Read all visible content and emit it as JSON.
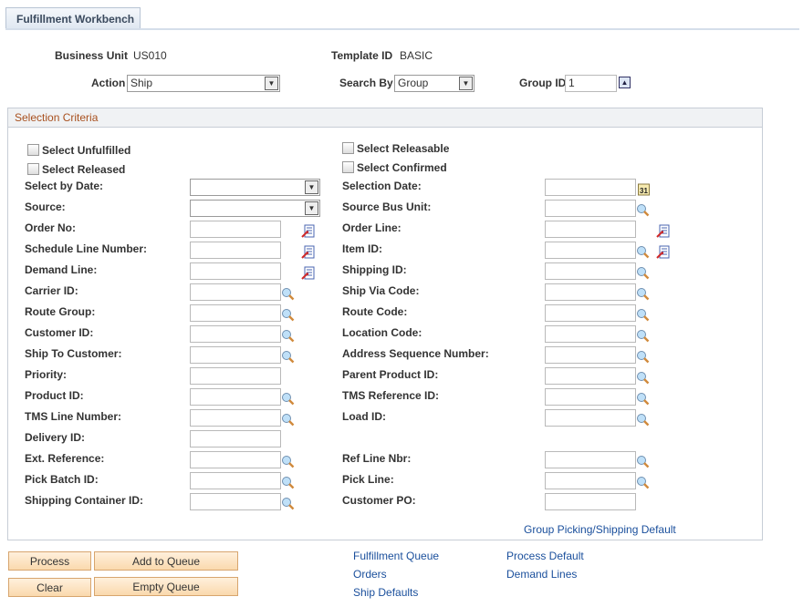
{
  "tab": {
    "label": "Fulfillment Workbench"
  },
  "header": {
    "business_unit_label": "Business Unit",
    "business_unit": "US010",
    "template_id_label": "Template ID",
    "template_id": "BASIC",
    "action_label": "Action",
    "action_value": "Ship",
    "search_by_label": "Search By",
    "search_by_value": "Group",
    "group_id_label": "Group ID",
    "group_id_value": "1"
  },
  "section": {
    "title": "Selection Criteria",
    "checkboxes": [
      {
        "label": "Select Unfulfilled",
        "checked": false
      },
      {
        "label": "Select Released",
        "checked": false
      },
      {
        "label": "Select Releasable",
        "checked": false
      },
      {
        "label": "Select Confirmed",
        "checked": false
      }
    ],
    "left_fields": [
      {
        "label": "Select by Date:",
        "type": "select",
        "icons": []
      },
      {
        "label": "Source:",
        "type": "select",
        "icons": []
      },
      {
        "label": "Order No:",
        "type": "input",
        "icons": [
          "detail"
        ]
      },
      {
        "label": "Schedule Line Number:",
        "type": "input",
        "icons": [
          "detail"
        ]
      },
      {
        "label": "Demand Line:",
        "type": "input",
        "icons": [
          "detail"
        ]
      },
      {
        "label": "Carrier ID:",
        "type": "input",
        "icons": [
          "lookup"
        ]
      },
      {
        "label": "Route Group:",
        "type": "input",
        "icons": [
          "lookup"
        ]
      },
      {
        "label": "Customer ID:",
        "type": "input",
        "icons": [
          "lookup"
        ]
      },
      {
        "label": "Ship To Customer:",
        "type": "input",
        "icons": [
          "lookup"
        ]
      },
      {
        "label": "Priority:",
        "type": "input",
        "icons": []
      },
      {
        "label": "Product ID:",
        "type": "input",
        "icons": [
          "lookup"
        ]
      },
      {
        "label": "TMS Line Number:",
        "type": "input",
        "icons": [
          "lookup"
        ]
      },
      {
        "label": "Delivery ID:",
        "type": "input",
        "icons": []
      },
      {
        "label": "Ext. Reference:",
        "type": "input",
        "icons": [
          "lookup"
        ]
      },
      {
        "label": "Pick Batch ID:",
        "type": "input",
        "icons": [
          "lookup"
        ]
      },
      {
        "label": "Shipping Container ID:",
        "type": "input",
        "icons": [
          "lookup"
        ]
      }
    ],
    "right_fields": [
      {
        "label": "Selection Date:",
        "type": "input",
        "icons": [
          "calendar"
        ]
      },
      {
        "label": "Source Bus Unit:",
        "type": "input",
        "icons": [
          "lookup"
        ]
      },
      {
        "label": "Order Line:",
        "type": "input",
        "icons": [
          "detail"
        ]
      },
      {
        "label": "Item ID:",
        "type": "input",
        "icons": [
          "lookup",
          "detail"
        ]
      },
      {
        "label": "Shipping ID:",
        "type": "input",
        "icons": [
          "lookup"
        ]
      },
      {
        "label": "Ship Via Code:",
        "type": "input",
        "icons": [
          "lookup"
        ]
      },
      {
        "label": "Route Code:",
        "type": "input",
        "icons": [
          "lookup"
        ]
      },
      {
        "label": "Location Code:",
        "type": "input",
        "icons": [
          "lookup"
        ]
      },
      {
        "label": "Address Sequence Number:",
        "type": "input",
        "icons": [
          "lookup"
        ]
      },
      {
        "label": "Parent Product ID:",
        "type": "input",
        "icons": [
          "lookup"
        ]
      },
      {
        "label": "TMS Reference ID:",
        "type": "input",
        "icons": [
          "lookup"
        ]
      },
      {
        "label": "Load ID:",
        "type": "input",
        "icons": [
          "lookup"
        ]
      },
      null,
      {
        "label": "Ref Line Nbr:",
        "type": "input",
        "icons": [
          "lookup"
        ]
      },
      {
        "label": "Pick Line:",
        "type": "input",
        "icons": [
          "lookup"
        ]
      },
      {
        "label": "Customer PO:",
        "type": "input",
        "icons": []
      }
    ],
    "group_default_link": "Group Picking/Shipping Default"
  },
  "buttons": {
    "process": "Process",
    "add_to_queue": "Add to Queue",
    "clear": "Clear",
    "empty_queue": "Empty Queue"
  },
  "links": {
    "fulfillment_queue": "Fulfillment Queue",
    "orders": "Orders",
    "ship_defaults": "Ship Defaults",
    "process_default": "Process Default",
    "demand_lines": "Demand Lines"
  }
}
